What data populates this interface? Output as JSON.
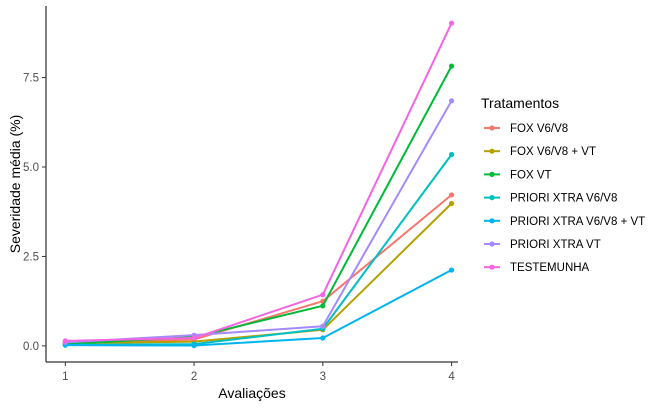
{
  "chart_data": {
    "type": "line",
    "title": "",
    "xlabel": "Avaliações",
    "ylabel": "Severidade média (%)",
    "x": [
      1,
      2,
      3,
      4
    ],
    "xticks": [
      "1",
      "2",
      "3",
      "4"
    ],
    "yticks": [
      "0.0",
      "2.5",
      "5.0",
      "7.5"
    ],
    "ylim": [
      -0.45,
      9.5
    ],
    "xlim": [
      0.85,
      4.05
    ],
    "grid": false,
    "legend": {
      "title": "Tratamentos",
      "position": "right"
    },
    "series": [
      {
        "name": "FOX V6/V8",
        "color": "#F8766D",
        "values": [
          0.08,
          0.18,
          1.25,
          4.22
        ]
      },
      {
        "name": "FOX V6/V8 + VT",
        "color": "#B79F00",
        "values": [
          0.07,
          0.12,
          0.45,
          3.98
        ]
      },
      {
        "name": "FOX VT",
        "color": "#00BA38",
        "values": [
          0.05,
          0.25,
          1.12,
          7.82
        ]
      },
      {
        "name": "PRIORI XTRA V6/V8",
        "color": "#00BFC4",
        "values": [
          0.03,
          0.05,
          0.48,
          5.35
        ]
      },
      {
        "name": "PRIORI XTRA V6/V8 + VT",
        "color": "#00B4EF",
        "values": [
          0.02,
          0.01,
          0.22,
          2.12
        ]
      },
      {
        "name": "PRIORI XTRA VT",
        "color": "#A58AFF",
        "values": [
          0.1,
          0.3,
          0.55,
          6.85
        ]
      },
      {
        "name": "TESTEMUNHA",
        "color": "#F564E3",
        "values": [
          0.14,
          0.22,
          1.43,
          9.02
        ]
      }
    ]
  }
}
